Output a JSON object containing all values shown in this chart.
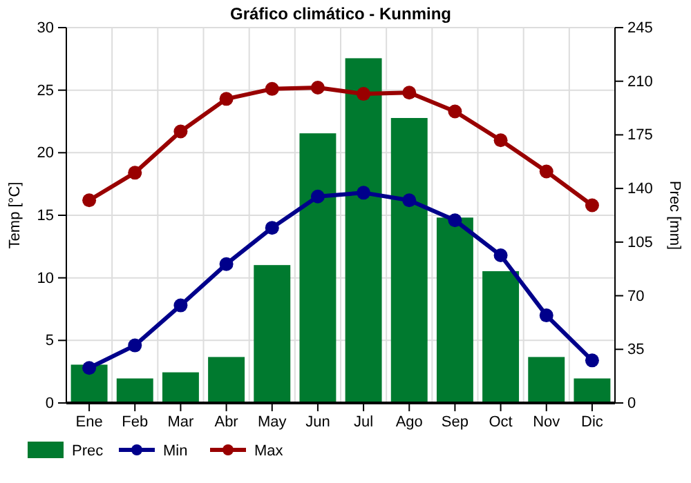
{
  "chart_data": {
    "type": "bar",
    "title": "Gráfico climático - Kunming",
    "ylabel": "Temp [°C]",
    "y2label": "Prec [mm]",
    "categories": [
      "Ene",
      "Feb",
      "Mar",
      "Abr",
      "May",
      "Jun",
      "Jul",
      "Ago",
      "Sep",
      "Oct",
      "Nov",
      "Dic"
    ],
    "series": [
      {
        "name": "Prec",
        "axis": "y2",
        "color": "#007a2f",
        "values": [
          25,
          16,
          20,
          30,
          90,
          176,
          225,
          186,
          121,
          86,
          30,
          16
        ]
      },
      {
        "name": "Min",
        "type": "line",
        "color": "#00008b",
        "values": [
          2.8,
          4.6,
          7.8,
          11.1,
          14.0,
          16.5,
          16.8,
          16.2,
          14.6,
          11.8,
          7.0,
          3.4
        ]
      },
      {
        "name": "Max",
        "type": "line",
        "color": "#990000",
        "values": [
          16.2,
          18.4,
          21.7,
          24.3,
          25.1,
          25.2,
          24.7,
          24.8,
          23.3,
          21.0,
          18.5,
          15.8
        ]
      }
    ],
    "ylim": [
      0,
      30
    ],
    "yticks": [
      0,
      5,
      10,
      15,
      20,
      25,
      30
    ],
    "y2lim": [
      0,
      245
    ],
    "y2ticks": [
      0,
      35,
      70,
      105,
      140,
      175,
      210,
      245
    ],
    "grid": true,
    "legend": "bottom",
    "marker": "circle"
  }
}
